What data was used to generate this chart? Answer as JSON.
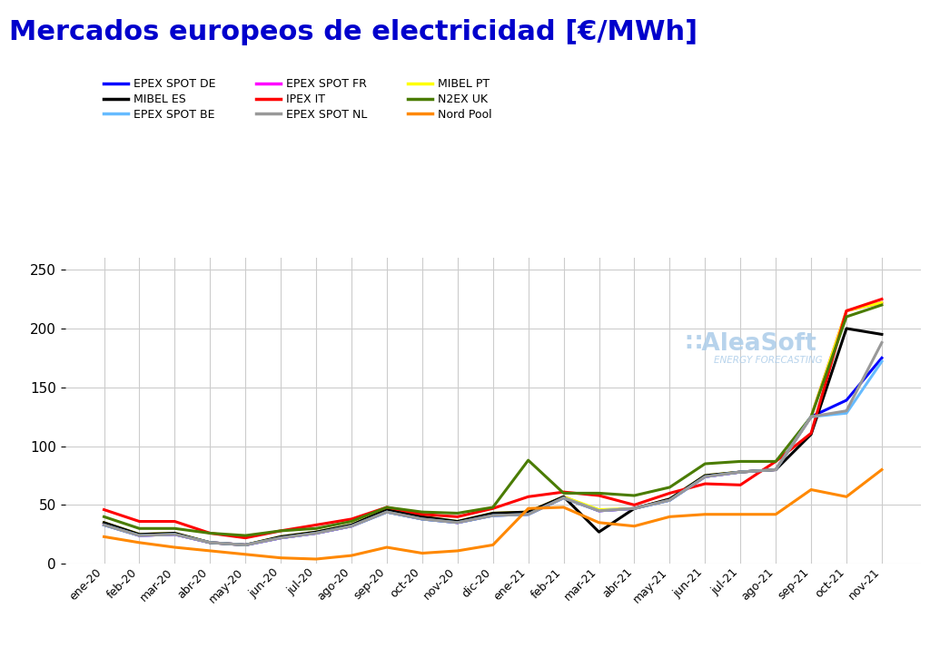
{
  "title": "Mercados europeos de electricidad [€/MWh]",
  "title_color": "#0000cc",
  "background_color": "#ffffff",
  "grid_color": "#cccccc",
  "x_labels": [
    "ene-20",
    "feb-20",
    "mar-20",
    "abr-20",
    "may-20",
    "jun-20",
    "jul-20",
    "ago-20",
    "sep-20",
    "oct-20",
    "nov-20",
    "dic-20",
    "ene-21",
    "feb-21",
    "mar-21",
    "abr-21",
    "may-21",
    "jun-21",
    "jul-21",
    "ago-21",
    "sep-21",
    "oct-21",
    "nov-21"
  ],
  "series": [
    {
      "name": "EPEX SPOT DE",
      "color": "#0000ff",
      "values": [
        33,
        24,
        25,
        18,
        16,
        22,
        26,
        32,
        44,
        38,
        35,
        41,
        42,
        56,
        45,
        47,
        54,
        74,
        78,
        80,
        125,
        139,
        175
      ]
    },
    {
      "name": "EPEX SPOT FR",
      "color": "#ff00ff",
      "values": [
        34,
        24,
        25,
        18,
        16,
        22,
        26,
        32,
        45,
        39,
        35,
        42,
        43,
        57,
        45,
        47,
        55,
        74,
        78,
        80,
        125,
        215,
        222
      ]
    },
    {
      "name": "MIBEL PT",
      "color": "#ffff00",
      "values": [
        35,
        25,
        26,
        18,
        16,
        23,
        27,
        33,
        46,
        40,
        36,
        43,
        44,
        57,
        46,
        47,
        55,
        75,
        78,
        80,
        125,
        215,
        222
      ]
    },
    {
      "name": "MIBEL ES",
      "color": "#000000",
      "values": [
        35,
        25,
        26,
        18,
        16,
        23,
        27,
        33,
        46,
        40,
        36,
        43,
        44,
        57,
        27,
        47,
        55,
        75,
        78,
        80,
        110,
        200,
        195
      ]
    },
    {
      "name": "IPEX IT",
      "color": "#ff0000",
      "values": [
        46,
        36,
        36,
        26,
        22,
        28,
        33,
        38,
        48,
        42,
        40,
        47,
        57,
        61,
        58,
        50,
        60,
        68,
        67,
        87,
        111,
        215,
        225
      ]
    },
    {
      "name": "N2EX UK",
      "color": "#4a7c00",
      "values": [
        40,
        30,
        30,
        26,
        24,
        28,
        30,
        36,
        48,
        44,
        43,
        48,
        88,
        60,
        60,
        58,
        65,
        85,
        87,
        87,
        125,
        210,
        220
      ]
    },
    {
      "name": "EPEX SPOT BE",
      "color": "#66bbff",
      "values": [
        33,
        24,
        25,
        18,
        16,
        22,
        26,
        32,
        44,
        38,
        35,
        41,
        42,
        56,
        45,
        47,
        54,
        74,
        78,
        80,
        125,
        128,
        172
      ]
    },
    {
      "name": "EPEX SPOT NL",
      "color": "#999999",
      "values": [
        33,
        24,
        25,
        18,
        16,
        22,
        26,
        32,
        44,
        38,
        35,
        41,
        42,
        56,
        45,
        47,
        54,
        74,
        78,
        80,
        125,
        130,
        188
      ]
    },
    {
      "name": "Nord Pool",
      "color": "#ff8800",
      "values": [
        23,
        18,
        14,
        11,
        8,
        5,
        4,
        7,
        14,
        9,
        11,
        16,
        47,
        48,
        35,
        32,
        40,
        42,
        42,
        42,
        63,
        57,
        80
      ]
    }
  ],
  "legend_order": [
    0,
    3,
    6,
    1,
    4,
    7,
    2,
    5,
    8
  ],
  "ylim": [
    0,
    260
  ],
  "yticks": [
    0,
    50,
    100,
    150,
    200,
    250
  ],
  "watermark_text": "∷AleaSoft",
  "watermark_sub": "ENERGY FORECASTING"
}
